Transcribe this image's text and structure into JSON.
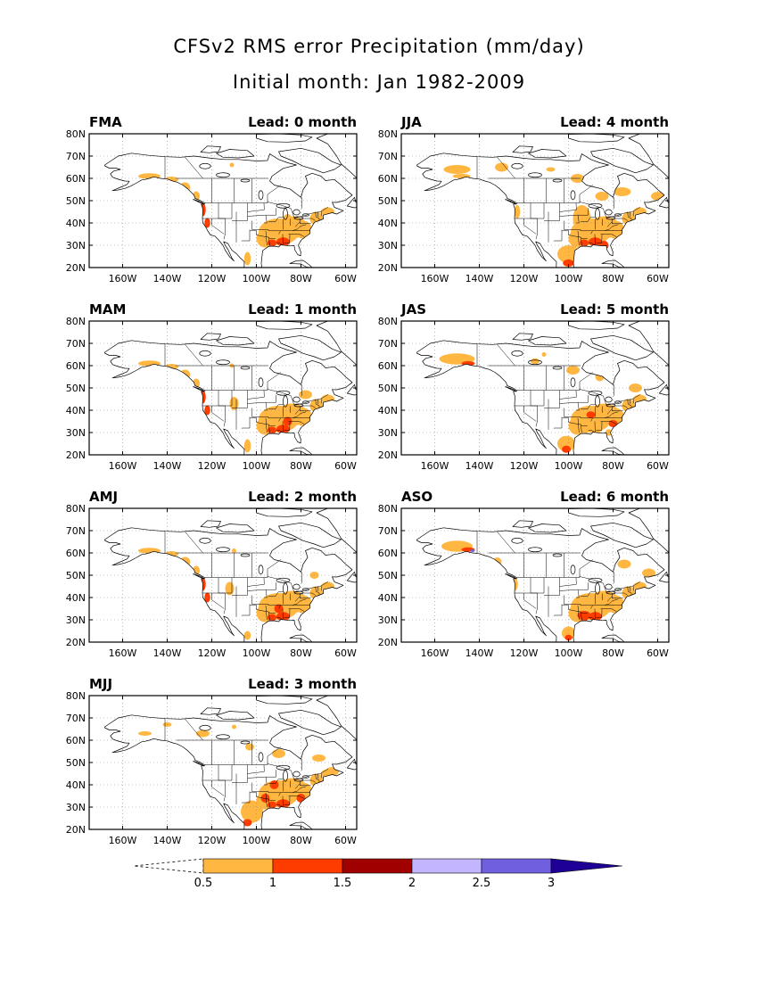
{
  "title": "CFSv2 RMS error Precipitation (mm/day)",
  "subtitle": "Initial month: Jan 1982-2009",
  "colors": {
    "c05": "#ffb741",
    "c10": "#ff3c00",
    "c15": "#a00000",
    "c20": "#c3b5ff",
    "c25": "#7060e0",
    "c30": "#1e0096",
    "land": "#ffffff",
    "coast": "#000000",
    "grid": "#888888"
  },
  "axes": {
    "lat_labels": [
      "80N",
      "70N",
      "60N",
      "50N",
      "40N",
      "30N",
      "20N"
    ],
    "lon_labels": [
      "160W",
      "140W",
      "120W",
      "100W",
      "80W",
      "60W"
    ]
  },
  "colorbar": {
    "labels": [
      "0.5",
      "1",
      "1.5",
      "2",
      "2.5",
      "3"
    ]
  },
  "panels": [
    {
      "season": "FMA",
      "lead": "Lead: 0 month",
      "col": 0,
      "row": 0
    },
    {
      "season": "JJA",
      "lead": "Lead: 4 month",
      "col": 1,
      "row": 0
    },
    {
      "season": "MAM",
      "lead": "Lead: 1 month",
      "col": 0,
      "row": 1
    },
    {
      "season": "JAS",
      "lead": "Lead: 5 month",
      "col": 1,
      "row": 1
    },
    {
      "season": "AMJ",
      "lead": "Lead: 2 month",
      "col": 0,
      "row": 2
    },
    {
      "season": "ASO",
      "lead": "Lead: 6 month",
      "col": 1,
      "row": 2
    },
    {
      "season": "MJJ",
      "lead": "Lead: 3 month",
      "col": 0,
      "row": 3
    }
  ]
}
